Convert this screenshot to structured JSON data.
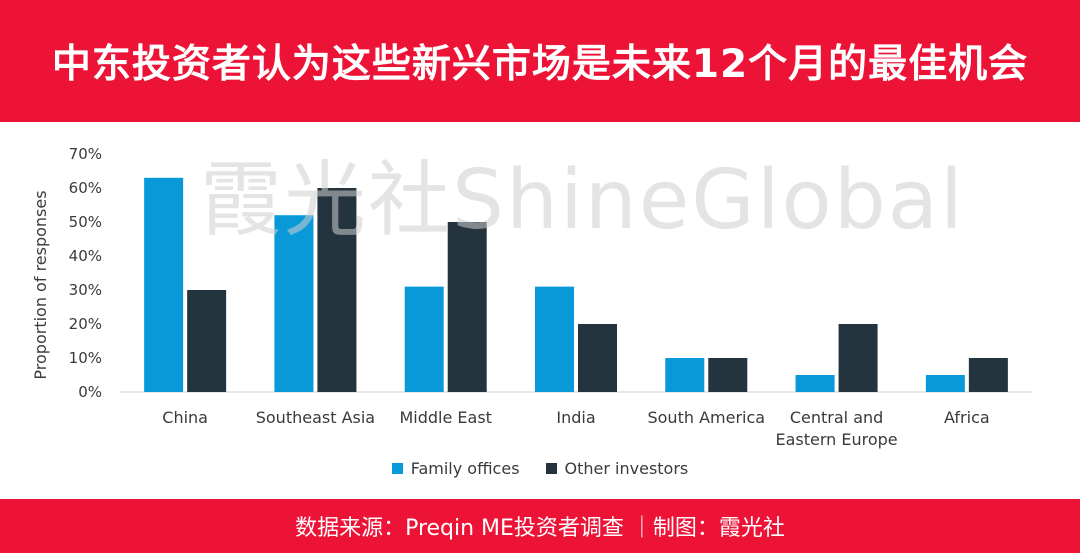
{
  "header": {
    "title": "中东投资者认为这些新兴市场是未来12个月的最佳机会"
  },
  "footer": {
    "source": "数据来源：Preqin ME投资者调查 ｜制图：霞光社"
  },
  "watermark": "霞光社ShineGlobal",
  "colors": {
    "brand_red": "#ec1337",
    "family_offices": "#0a99d8",
    "other_investors": "#24343f"
  },
  "chart_data": {
    "type": "bar",
    "title": "",
    "ylabel": "Proportion of responses",
    "xlabel": "",
    "ylim": [
      0,
      70
    ],
    "yticks": [
      "0%",
      "10%",
      "20%",
      "30%",
      "40%",
      "50%",
      "60%",
      "70%"
    ],
    "categories": [
      "China",
      "Southeast Asia",
      "Middle East",
      "India",
      "South America",
      "Central and Eastern Europe",
      "Africa"
    ],
    "category_lines": [
      [
        "China"
      ],
      [
        "Southeast Asia"
      ],
      [
        "Middle East"
      ],
      [
        "India"
      ],
      [
        "South America"
      ],
      [
        "Central and",
        "Eastern Europe"
      ],
      [
        "Africa"
      ]
    ],
    "series": [
      {
        "name": "Family offices",
        "color": "#0a99d8",
        "values": [
          63,
          52,
          31,
          31,
          10,
          5,
          5
        ]
      },
      {
        "name": "Other investors",
        "color": "#24343f",
        "values": [
          30,
          60,
          50,
          20,
          10,
          20,
          10
        ]
      }
    ],
    "legend_position": "bottom",
    "grid": true
  }
}
